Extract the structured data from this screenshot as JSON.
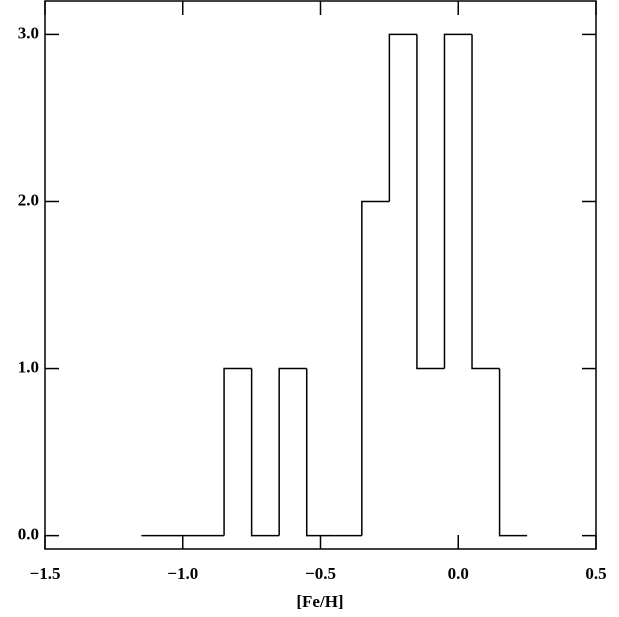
{
  "chart_data": {
    "type": "histogram",
    "xlabel": "[Fe/H]",
    "bins": [
      -1.15,
      -1.05,
      -0.95,
      -0.85,
      -0.75,
      -0.65,
      -0.55,
      -0.45,
      -0.35,
      -0.25,
      -0.15,
      -0.05,
      0.05,
      0.15,
      0.25
    ],
    "values": [
      0,
      0,
      0,
      1,
      0,
      1,
      0,
      0,
      2,
      3,
      1,
      3,
      1,
      0
    ],
    "color": "#000000",
    "xlim": [
      -1.5,
      0.5
    ],
    "xticks": [
      {
        "value": -1.5,
        "label": "−1.5"
      },
      {
        "value": -1.0,
        "label": "−1.0"
      },
      {
        "value": -0.5,
        "label": "−0.5"
      },
      {
        "value": 0.0,
        "label": "0.0"
      },
      0.5
    ],
    "ylim": [
      -0.08,
      3.2
    ],
    "yticks": [
      {
        "value": 0,
        "label": "0.0"
      },
      {
        "value": 1,
        "label": "1.0"
      },
      {
        "value": 2,
        "label": "2.0"
      },
      {
        "value": 3,
        "label": "3.0"
      }
    ]
  }
}
